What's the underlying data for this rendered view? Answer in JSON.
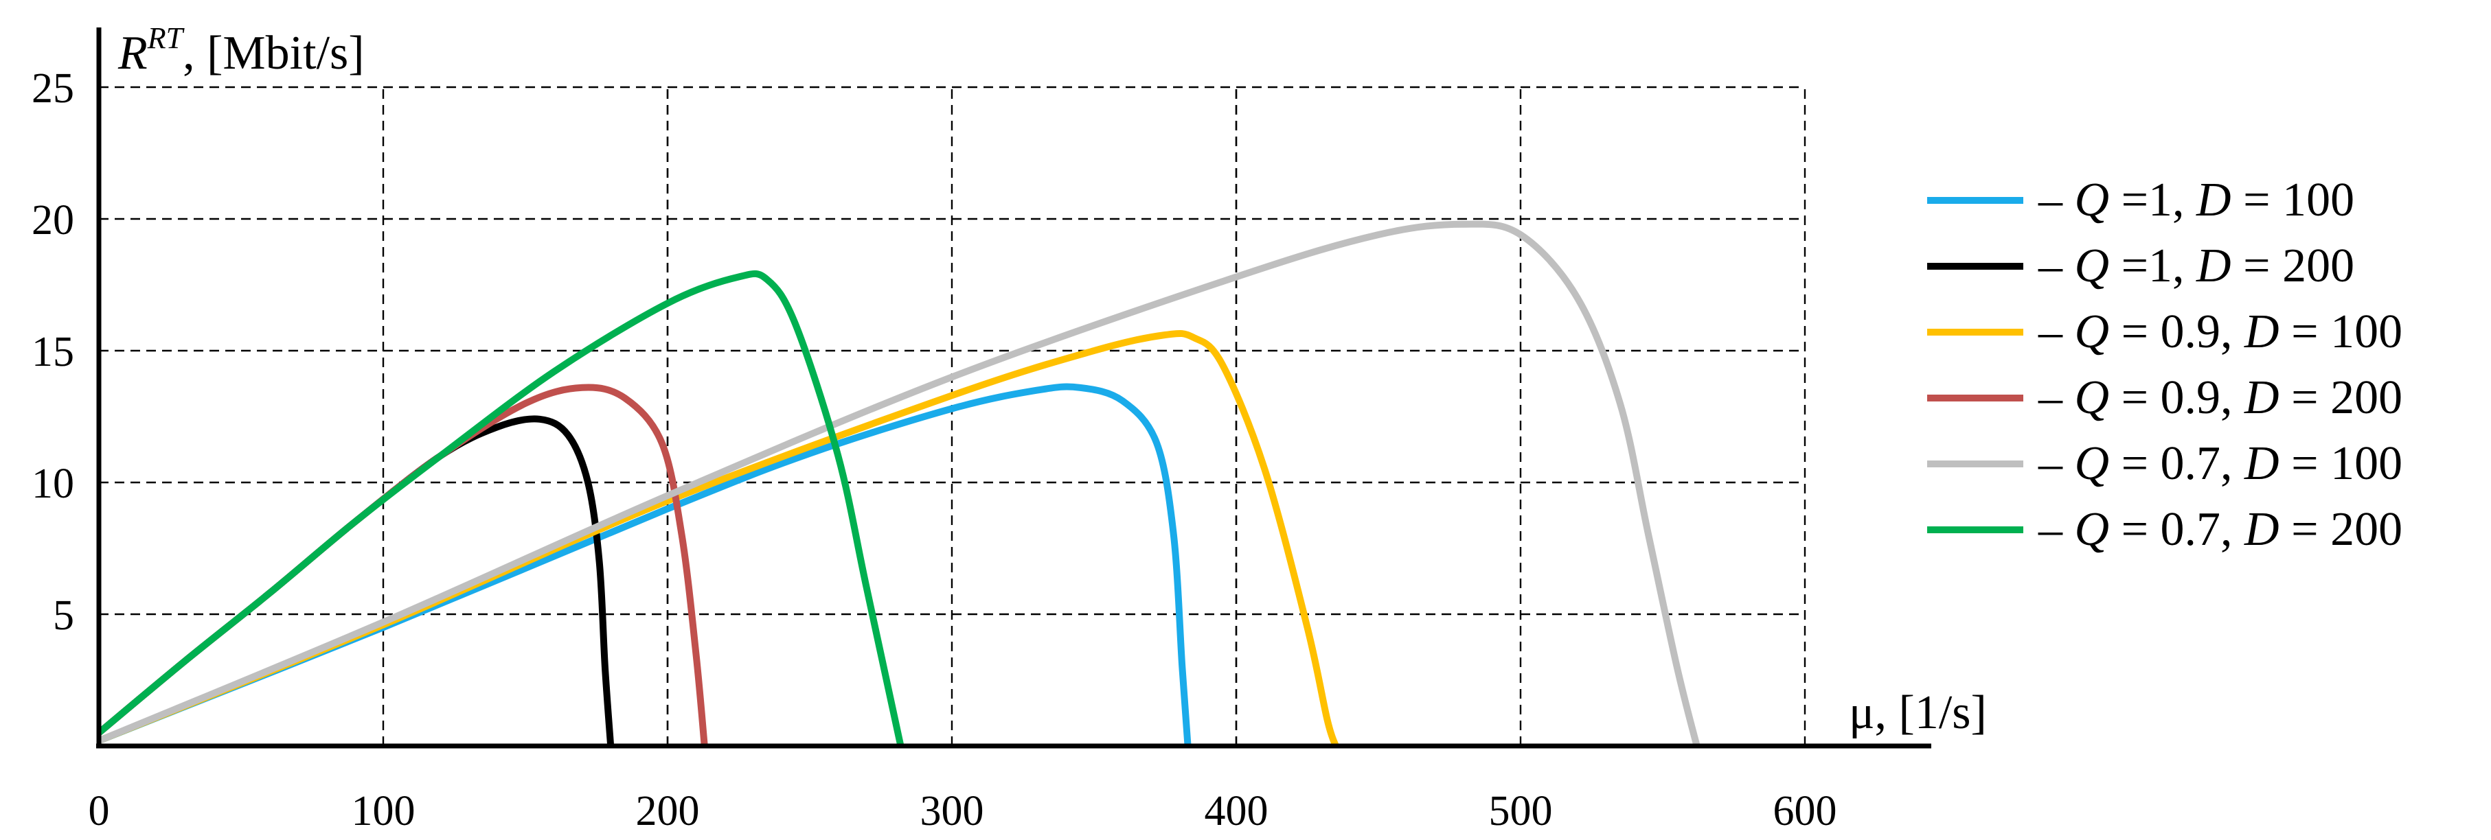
{
  "chart_data": {
    "type": "line",
    "y_axis": {
      "label_main": "R",
      "label_sup": "RT",
      "label_rest": ", [Mbit/s]",
      "range": [
        0,
        25
      ],
      "ticks": [
        5,
        10,
        15,
        20,
        25
      ]
    },
    "x_axis": {
      "label_main": "μ",
      "label_rest": ", [1/s]",
      "range": [
        0,
        600
      ],
      "ticks": [
        0,
        100,
        200,
        300,
        400,
        500,
        600
      ],
      "extra_gridlines": [
        200,
        400
      ]
    },
    "grid": true,
    "legend_placement": "right",
    "series": [
      {
        "name": "– Q =1, D = 100",
        "legend": {
          "dash": "– ",
          "q_lbl": "Q",
          "q_val": " =1, ",
          "d_lbl": "D",
          "d_val": " = 100"
        },
        "color": "#1aabea",
        "x": [
          0,
          100,
          200,
          250,
          300,
          330,
          345,
          360,
          372,
          378,
          381,
          383
        ],
        "y": [
          0.2,
          4.5,
          9.0,
          11.1,
          12.8,
          13.5,
          13.6,
          13.1,
          11.5,
          8.0,
          3.0,
          0
        ]
      },
      {
        "name": "– Q =1, D = 200",
        "legend": {
          "dash": "– ",
          "q_lbl": "Q",
          "q_val": " =1, ",
          "d_lbl": "D",
          "d_val": " = 200"
        },
        "color": "#000000",
        "x": [
          0,
          30,
          60,
          90,
          120,
          140,
          155,
          165,
          172,
          176,
          178,
          180
        ],
        "y": [
          0.5,
          3.2,
          5.8,
          8.5,
          11.0,
          12.1,
          12.4,
          11.8,
          10.0,
          7.0,
          3.0,
          0
        ]
      },
      {
        "name": "– Q = 0.9, D = 100",
        "legend": {
          "dash": "– ",
          "q_lbl": "Q",
          "q_val": " = 0.9, ",
          "d_lbl": "D",
          "d_val": " = 100"
        },
        "color": "#ffc000",
        "x": [
          0,
          100,
          200,
          300,
          350,
          375,
          385,
          395,
          410,
          425,
          432,
          435
        ],
        "y": [
          0.2,
          4.6,
          9.3,
          13.3,
          15.0,
          15.6,
          15.5,
          14.5,
          10.5,
          4.5,
          1.0,
          0
        ]
      },
      {
        "name": "– Q = 0.9, D = 200",
        "legend": {
          "dash": "– ",
          "q_lbl": "Q",
          "q_val": " = 0.9, ",
          "d_lbl": "D",
          "d_val": " = 200"
        },
        "color": "#c0504d",
        "x": [
          0,
          30,
          60,
          90,
          120,
          150,
          170,
          185,
          198,
          205,
          210,
          213
        ],
        "y": [
          0.5,
          3.2,
          5.8,
          8.5,
          11.0,
          13.0,
          13.6,
          13.2,
          11.5,
          8.0,
          3.5,
          0
        ]
      },
      {
        "name": "– Q = 0.7, D = 100",
        "legend": {
          "dash": "– ",
          "q_lbl": "Q",
          "q_val": " = 0.7, ",
          "d_lbl": "D",
          "d_val": " = 100"
        },
        "color": "#bfbfbf",
        "x": [
          0,
          100,
          200,
          300,
          400,
          450,
          480,
          500,
          520,
          535,
          545,
          555,
          562
        ],
        "y": [
          0.2,
          4.7,
          9.5,
          14.0,
          17.8,
          19.4,
          19.8,
          19.4,
          17.0,
          13.0,
          8.0,
          3.0,
          0
        ]
      },
      {
        "name": "– Q = 0.7, D = 200",
        "legend": {
          "dash": "– ",
          "q_lbl": "Q",
          "q_val": " = 0.7, ",
          "d_lbl": "D",
          "d_val": " = 200"
        },
        "color": "#00b050",
        "x": [
          0,
          30,
          60,
          90,
          120,
          160,
          200,
          225,
          235,
          245,
          260,
          270,
          282
        ],
        "y": [
          0.5,
          3.2,
          5.8,
          8.5,
          11.0,
          14.2,
          16.8,
          17.8,
          17.7,
          16.0,
          11.0,
          6.0,
          0
        ]
      }
    ]
  }
}
